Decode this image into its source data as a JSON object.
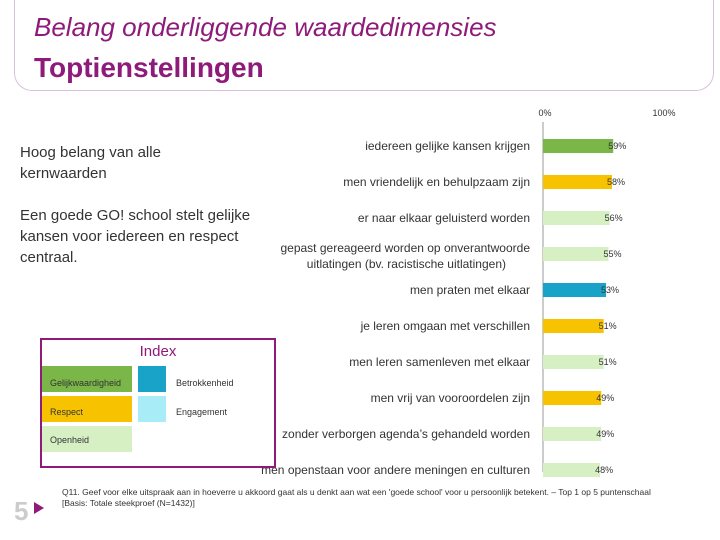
{
  "header": {
    "title": "Belang onderliggende waardedimensies",
    "subtitle": "Toptienstellingen"
  },
  "side": {
    "text1": "Hoog belang van alle kernwaarden",
    "text2": "Een goede GO! school stelt gelijke kansen voor iedereen en respect centraal."
  },
  "index": {
    "title": "Index",
    "items": [
      {
        "label": "Gelijkwaardigheid",
        "color": "#7ab648"
      },
      {
        "label": "Betrokkenheid",
        "color": "#1aa3c8"
      },
      {
        "label": "Respect",
        "color": "#f7c300"
      },
      {
        "label": "Engagement",
        "color": "#a8ecf8"
      },
      {
        "label": "Openheid",
        "color": "#d6f0c4"
      }
    ]
  },
  "footnote": "Q11. Geef voor elke uitspraak aan in hoeverre u akkoord gaat als u denkt aan wat een 'goede school' voor u persoonlijk betekent. – Top 1 op 5 puntenschaal [Basis: Totale steekproef (N=1432)]",
  "page_number": "5",
  "chart_data": {
    "type": "bar",
    "orientation": "horizontal",
    "axis_ticks": [
      "0%",
      "100%"
    ],
    "xlim": [
      0,
      100
    ],
    "grid": false,
    "categories": [
      "iedereen gelijke kansen krijgen",
      "men vriendelijk en behulpzaam zijn",
      "er naar elkaar geluisterd worden",
      "gepast gereageerd worden op onverantwoorde uitlatingen (bv. racistische uitlatingen)",
      "men praten met elkaar",
      "je leren omgaan met verschillen",
      "men leren samenleven met elkaar",
      "men vrij van vooroordelen zijn",
      "zonder verborgen agenda’s gehandeld worden",
      "men openstaan voor andere meningen en culturen"
    ],
    "label_lines": [
      [
        "iedereen gelijke kansen krijgen"
      ],
      [
        "men vriendelijk en behulpzaam zijn"
      ],
      [
        "er naar elkaar geluisterd worden"
      ],
      [
        "gepast gereageerd worden op onverantwoorde",
        "uitlatingen (bv. racistische uitlatingen)"
      ],
      [
        "men praten met elkaar"
      ],
      [
        "je leren omgaan met verschillen"
      ],
      [
        "men leren samenleven met elkaar"
      ],
      [
        "men vrij van vooroordelen zijn"
      ],
      [
        "zonder verborgen agenda’s gehandeld worden"
      ],
      [
        "men openstaan voor andere meningen en culturen"
      ]
    ],
    "values": [
      59,
      58,
      56,
      55,
      53,
      51,
      51,
      49,
      49,
      48
    ],
    "value_labels": [
      "59%",
      "58%",
      "56%",
      "55%",
      "53%",
      "51%",
      "51%",
      "49%",
      "49%",
      "48%"
    ],
    "colors": [
      "#7ab648",
      "#f7c300",
      "#d6f0c4",
      "#d6f0c4",
      "#1aa3c8",
      "#f7c300",
      "#d6f0c4",
      "#f7c300",
      "#d6f0c4",
      "#d6f0c4"
    ]
  }
}
